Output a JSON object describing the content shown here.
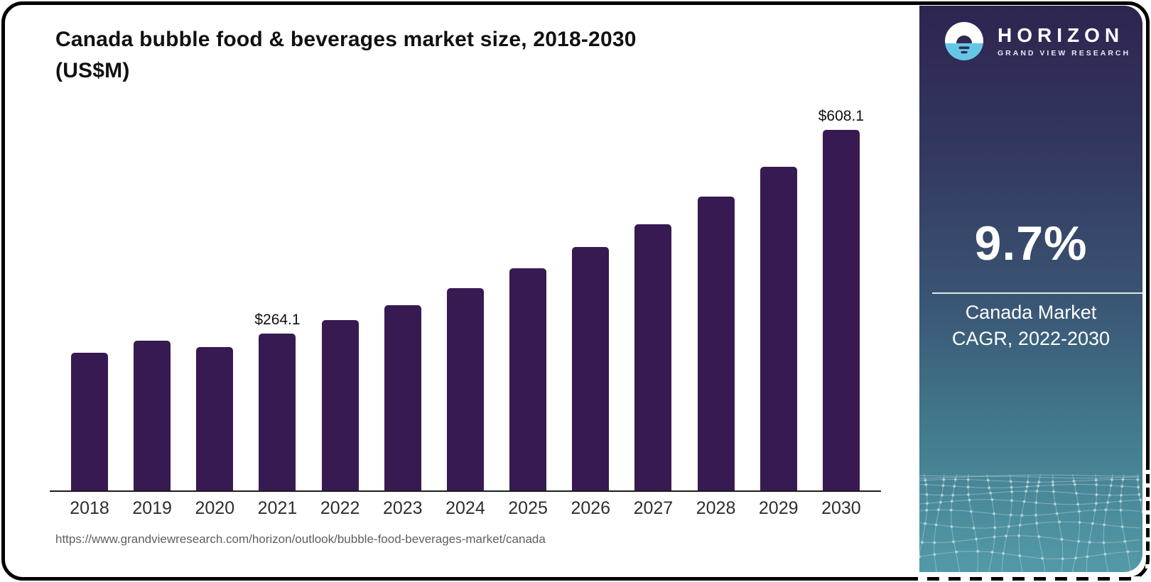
{
  "page": {
    "title_line1": "Canada bubble food & beverages market size, 2018-2030",
    "title_line2": "(US$M)",
    "source_url": "https://www.grandviewresearch.com/horizon/outlook/bubble-food-beverages-market/canada"
  },
  "chart_data": {
    "type": "bar",
    "title": "Canada bubble food & beverages market size, 2018-2030 (US$M)",
    "unit": "US$M",
    "categories": [
      "2018",
      "2019",
      "2020",
      "2021",
      "2022",
      "2023",
      "2024",
      "2025",
      "2026",
      "2027",
      "2028",
      "2029",
      "2030"
    ],
    "values": [
      232.0,
      252.2,
      241.6,
      264.1,
      287.0,
      312.1,
      340.9,
      374.3,
      410.2,
      448.4,
      496.2,
      546.5,
      608.1
    ],
    "labeled_points": [
      {
        "category": "2021",
        "label": "$264.1"
      },
      {
        "category": "2030",
        "label": "$608.1"
      }
    ],
    "bar_color": "#371a52",
    "xlabel": "",
    "ylabel": "",
    "ylim": [
      0,
      650
    ],
    "grid": false,
    "legend": false
  },
  "sidebar": {
    "logo": {
      "brand": "HORIZON",
      "sub_brand": "GRAND VIEW RESEARCH"
    },
    "stat_value": "9.7%",
    "stat_label_line1": "Canada Market",
    "stat_label_line2": "CAGR, 2022-2030"
  },
  "colors": {
    "bar_color": "#371a52",
    "card_top": "#2e2450",
    "card_mid": "#3a5574",
    "card_bottom": "#539aa8",
    "logo_blue": "#66c6e6",
    "logo_dark": "#2f2a52",
    "mesh_line": "rgba(222,240,244,0.38)",
    "frame": "#000000",
    "divider": "rgba(255,255,255,0.85)",
    "title_text": "#111111",
    "axis_text": "#2e2e2e",
    "url_text": "#5f5f5f"
  }
}
